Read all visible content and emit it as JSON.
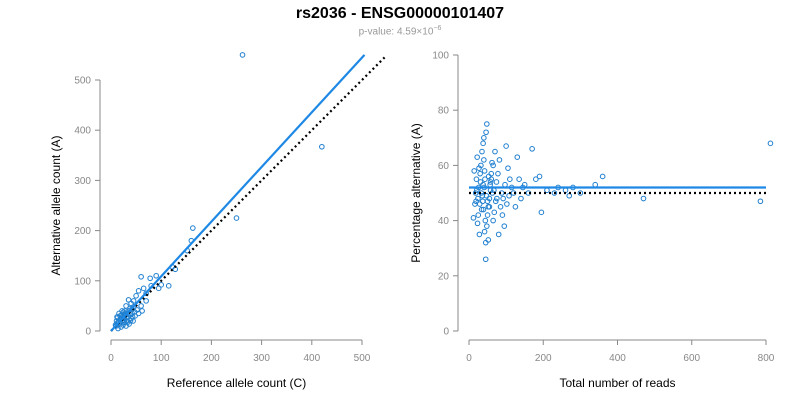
{
  "header": {
    "title": "rs2036 - ENSG00000101407",
    "pvalue_prefix": "p-value: ",
    "pvalue_mantissa": "4.59×10",
    "pvalue_exponent": "−6"
  },
  "colors": {
    "points": "#1f7fcf",
    "fit_line": "#1e88e5",
    "reference_line": "#000000"
  },
  "chart_data": [
    {
      "type": "scatter",
      "xlabel": "Reference allele count (C)",
      "ylabel": "Alternative allele count (A)",
      "xlim": [
        0,
        500
      ],
      "ylim": [
        0,
        500
      ],
      "xticks": [
        0,
        100,
        200,
        300,
        400,
        500
      ],
      "yticks": [
        0,
        100,
        200,
        300,
        400,
        500
      ],
      "grid": false,
      "fit_line": {
        "style": "solid",
        "from": [
          0,
          0
        ],
        "to": [
          505,
          550
        ]
      },
      "reference_line": {
        "style": "dotted",
        "from": [
          0,
          0
        ],
        "to": [
          545,
          545
        ]
      },
      "points": [
        [
          262,
          550
        ],
        [
          420,
          367
        ],
        [
          250,
          225
        ],
        [
          163,
          205
        ],
        [
          160,
          180
        ],
        [
          152,
          160
        ],
        [
          128,
          123
        ],
        [
          122,
          128
        ],
        [
          115,
          90
        ],
        [
          90,
          110
        ],
        [
          78,
          105
        ],
        [
          60,
          108
        ],
        [
          65,
          85
        ],
        [
          55,
          80
        ],
        [
          70,
          75
        ],
        [
          50,
          70
        ],
        [
          45,
          60
        ],
        [
          40,
          55
        ],
        [
          35,
          62
        ],
        [
          60,
          50
        ],
        [
          52,
          42
        ],
        [
          38,
          45
        ],
        [
          30,
          50
        ],
        [
          25,
          38
        ],
        [
          42,
          35
        ],
        [
          34,
          28
        ],
        [
          28,
          30
        ],
        [
          20,
          25
        ],
        [
          15,
          20
        ],
        [
          12,
          15
        ],
        [
          10,
          10
        ],
        [
          18,
          30
        ],
        [
          22,
          18
        ],
        [
          26,
          22
        ],
        [
          32,
          20
        ],
        [
          36,
          14
        ],
        [
          40,
          25
        ],
        [
          12,
          28
        ],
        [
          16,
          35
        ],
        [
          24,
          12
        ],
        [
          30,
          10
        ],
        [
          44,
          20
        ],
        [
          48,
          30
        ],
        [
          14,
          5
        ],
        [
          20,
          8
        ],
        [
          9,
          12
        ],
        [
          28,
          40
        ],
        [
          33,
          35
        ],
        [
          38,
          32
        ],
        [
          55,
          35
        ],
        [
          62,
          40
        ],
        [
          70,
          60
        ],
        [
          80,
          90
        ],
        [
          95,
          85
        ],
        [
          100,
          92
        ],
        [
          45,
          48
        ],
        [
          18,
          22
        ],
        [
          22,
          40
        ],
        [
          26,
          33
        ],
        [
          31,
          26
        ],
        [
          36,
          40
        ],
        [
          42,
          44
        ],
        [
          47,
          38
        ],
        [
          11,
          20
        ],
        [
          13,
          26
        ],
        [
          17,
          14
        ],
        [
          21,
          32
        ],
        [
          24,
          27
        ],
        [
          27,
          17
        ],
        [
          29,
          35
        ],
        [
          34,
          18
        ],
        [
          39,
          21
        ],
        [
          43,
          28
        ]
      ]
    },
    {
      "type": "scatter",
      "xlabel": "Total number of reads",
      "ylabel": "Percentage alternative (A)",
      "xlim": [
        0,
        800
      ],
      "ylim": [
        0,
        100
      ],
      "xticks": [
        0,
        200,
        400,
        600,
        800
      ],
      "yticks": [
        0,
        20,
        40,
        60,
        80,
        100
      ],
      "grid": false,
      "fit_line": {
        "style": "solid",
        "y": 52
      },
      "reference_line": {
        "style": "dotted",
        "y": 50
      },
      "points": [
        [
          812,
          68
        ],
        [
          785,
          47
        ],
        [
          470,
          48
        ],
        [
          360,
          56
        ],
        [
          340,
          53
        ],
        [
          300,
          50
        ],
        [
          280,
          52
        ],
        [
          270,
          49
        ],
        [
          260,
          51
        ],
        [
          240,
          52
        ],
        [
          230,
          50
        ],
        [
          210,
          51
        ],
        [
          195,
          43
        ],
        [
          190,
          56
        ],
        [
          180,
          55
        ],
        [
          170,
          66
        ],
        [
          160,
          50
        ],
        [
          150,
          53
        ],
        [
          145,
          52
        ],
        [
          140,
          48
        ],
        [
          135,
          55
        ],
        [
          130,
          63
        ],
        [
          125,
          45
        ],
        [
          120,
          50
        ],
        [
          115,
          52
        ],
        [
          110,
          55
        ],
        [
          105,
          59
        ],
        [
          100,
          67
        ],
        [
          95,
          38
        ],
        [
          90,
          42
        ],
        [
          85,
          45
        ],
        [
          80,
          35
        ],
        [
          75,
          48
        ],
        [
          70,
          65
        ],
        [
          65,
          60
        ],
        [
          60,
          55
        ],
        [
          58,
          51
        ],
        [
          55,
          45
        ],
        [
          52,
          33
        ],
        [
          50,
          47
        ],
        [
          48,
          75
        ],
        [
          46,
          72
        ],
        [
          45,
          26
        ],
        [
          44,
          40
        ],
        [
          42,
          58
        ],
        [
          40,
          62
        ],
        [
          38,
          53
        ],
        [
          36,
          49
        ],
        [
          34,
          44
        ],
        [
          32,
          60
        ],
        [
          30,
          57
        ],
        [
          28,
          35
        ],
        [
          26,
          52
        ],
        [
          24,
          48
        ],
        [
          22,
          63
        ],
        [
          20,
          55
        ],
        [
          18,
          50
        ],
        [
          16,
          46
        ],
        [
          14,
          58
        ],
        [
          12,
          41
        ],
        [
          35,
          65
        ],
        [
          38,
          68
        ],
        [
          40,
          70
        ],
        [
          42,
          36
        ],
        [
          45,
          32
        ],
        [
          48,
          38
        ],
        [
          50,
          42
        ],
        [
          52,
          45
        ],
        [
          55,
          48
        ],
        [
          58,
          54
        ],
        [
          60,
          57
        ],
        [
          62,
          61
        ],
        [
          65,
          40
        ],
        [
          68,
          43
        ],
        [
          72,
          47
        ],
        [
          33,
          50
        ],
        [
          37,
          47
        ],
        [
          41,
          52
        ],
        [
          43,
          55
        ],
        [
          47,
          49
        ],
        [
          29,
          46
        ],
        [
          31,
          54
        ],
        [
          27,
          59
        ],
        [
          25,
          42
        ],
        [
          23,
          39
        ],
        [
          21,
          51
        ],
        [
          19,
          47
        ],
        [
          39,
          44
        ],
        [
          53,
          56
        ],
        [
          57,
          53
        ],
        [
          63,
          50
        ],
        [
          67,
          51
        ],
        [
          74,
          54
        ],
        [
          78,
          57
        ],
        [
          82,
          62
        ],
        [
          88,
          50
        ],
        [
          92,
          48
        ],
        [
          97,
          53
        ],
        [
          102,
          46
        ],
        [
          108,
          49
        ]
      ]
    }
  ]
}
